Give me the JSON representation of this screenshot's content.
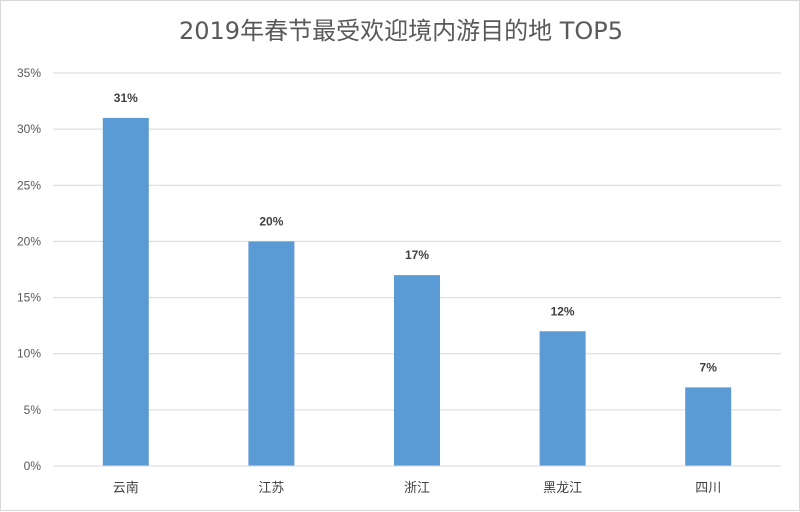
{
  "chart_data": {
    "type": "bar",
    "title": "2019年春节最受欢迎境内游目的地 TOP5",
    "xlabel": "",
    "ylabel": "",
    "categories": [
      "云南",
      "江苏",
      "浙江",
      "黑龙江",
      "四川"
    ],
    "values": [
      31,
      20,
      17,
      12,
      7
    ],
    "data_labels": [
      "31%",
      "20%",
      "17%",
      "12%",
      "7%"
    ],
    "y_ticks": [
      "0%",
      "5%",
      "10%",
      "15%",
      "20%",
      "25%",
      "30%",
      "35%"
    ],
    "ylim": [
      0,
      35
    ],
    "grid": true,
    "legend": "none",
    "bar_color": "#5b9bd5"
  }
}
